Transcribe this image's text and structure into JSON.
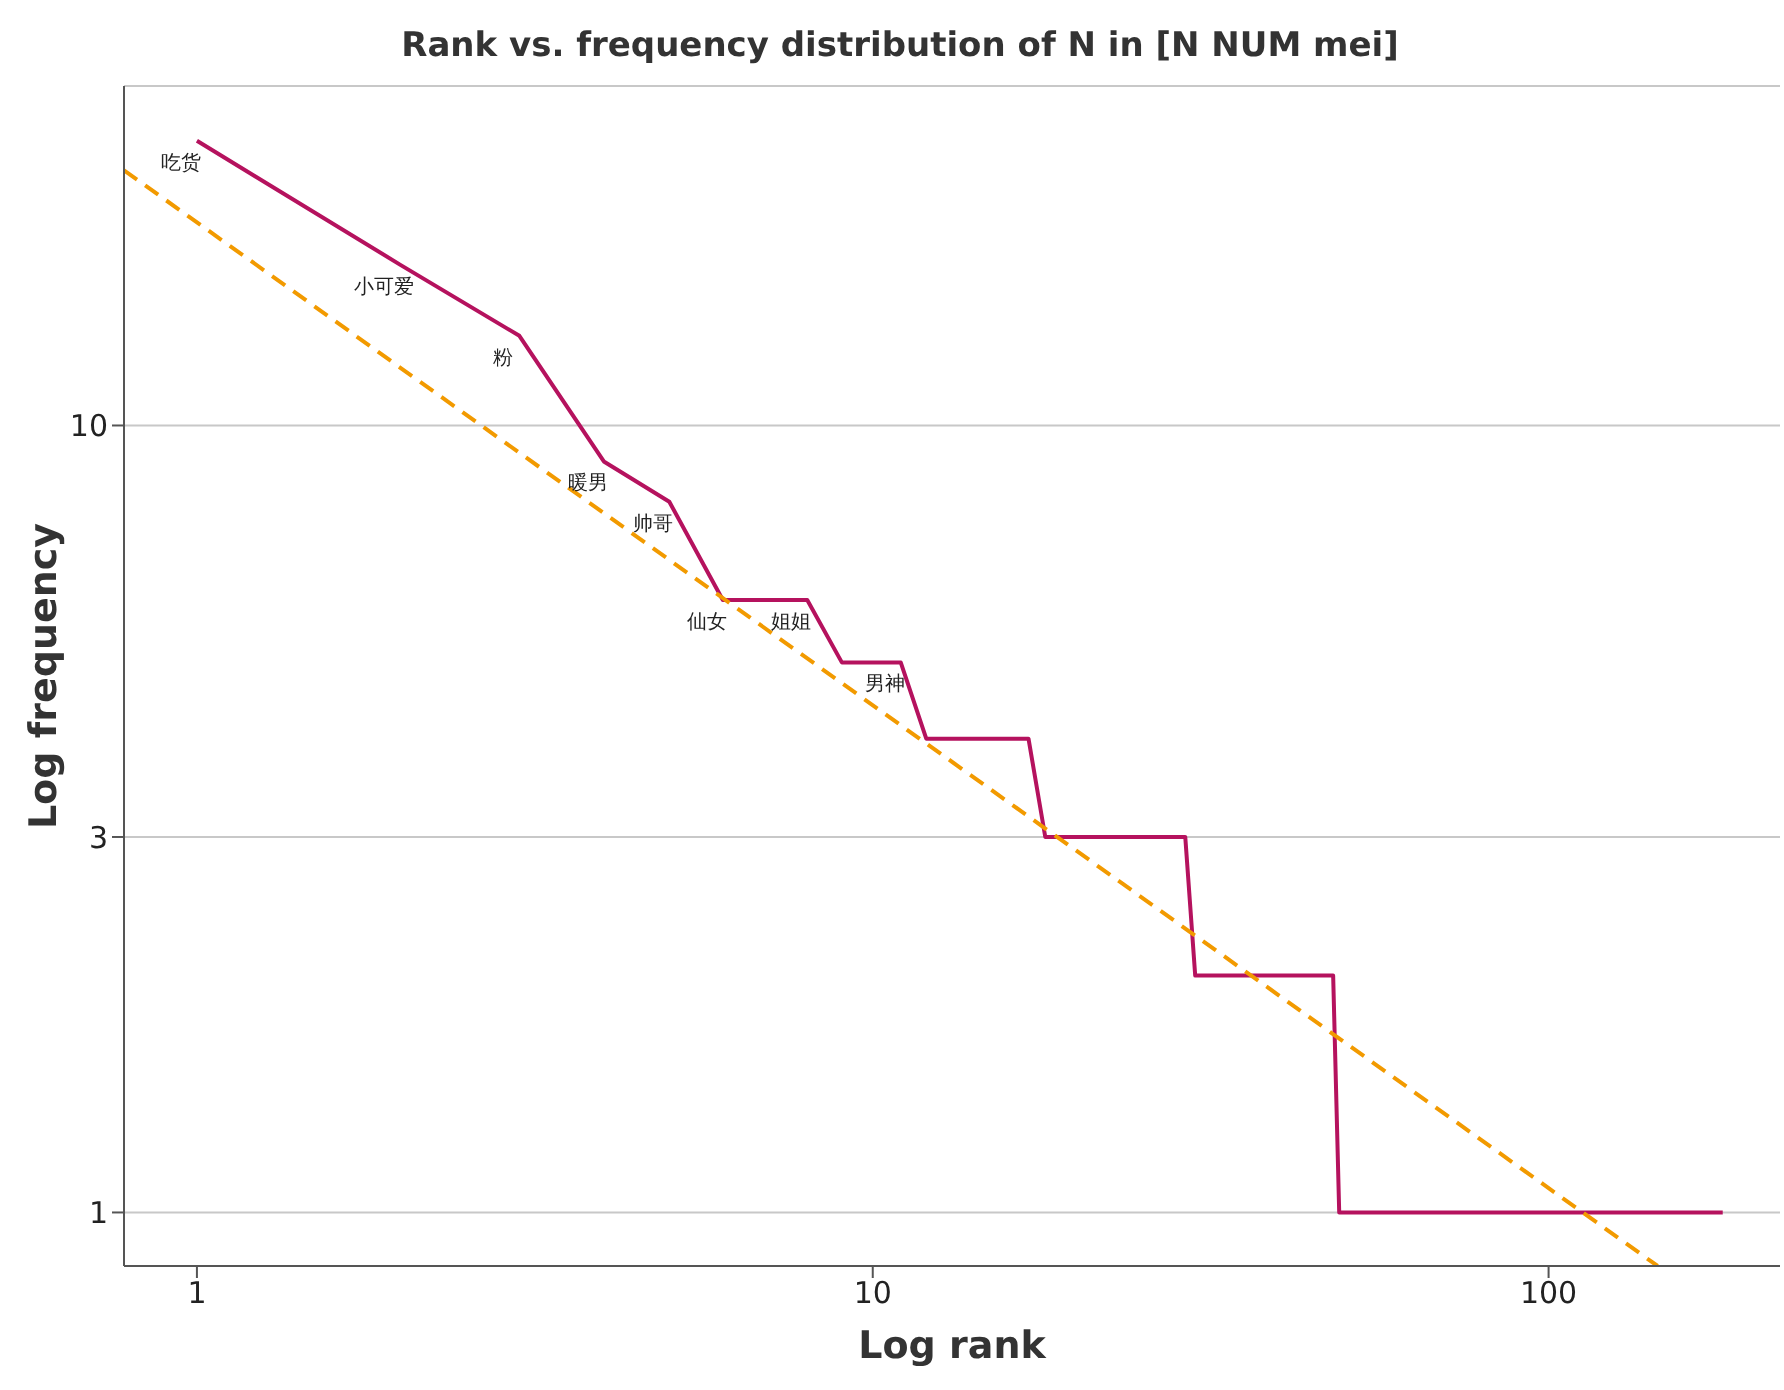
{
  "chart_data": {
    "type": "line",
    "title": "Rank vs. frequency distribution of N in [N NUM mei]",
    "xlabel": "Log rank",
    "ylabel": "Log frequency",
    "log": "xy",
    "grid": "y",
    "marker": "none",
    "xlim": [
      0.78,
      220
    ],
    "xticks": [
      1,
      10,
      100
    ],
    "ylim": [
      0.855,
      27
    ],
    "yticks": [
      1,
      3,
      10
    ],
    "series": [
      {
        "color": "#b5125e",
        "line_style": "solid",
        "x": [
          1,
          2,
          3,
          4,
          5,
          6,
          8,
          9,
          11,
          12,
          17,
          18,
          29,
          30,
          48,
          49,
          181
        ],
        "values": [
          23,
          16,
          13,
          9,
          8,
          6,
          6,
          5,
          5,
          4,
          4,
          3,
          3,
          2,
          2,
          1,
          1
        ]
      },
      {
        "color": "#f29a00",
        "line_style": "dashed",
        "x": [
          0.78,
          145
        ],
        "values": [
          21.1,
          0.855
        ]
      }
    ],
    "annotations": [
      {
        "text": "吃货",
        "x": 1,
        "y": 23
      },
      {
        "text": "小可爱",
        "x": 2,
        "y": 16
      },
      {
        "text": "粉",
        "x": 3,
        "y": 13
      },
      {
        "text": "暖男",
        "x": 4,
        "y": 9
      },
      {
        "text": "帅哥",
        "x": 5,
        "y": 8
      },
      {
        "text": "仙女",
        "x": 6,
        "y": 6
      },
      {
        "text": "姐姐",
        "x": 8,
        "y": 6
      },
      {
        "text": "男神",
        "x": 11,
        "y": 5
      }
    ]
  }
}
